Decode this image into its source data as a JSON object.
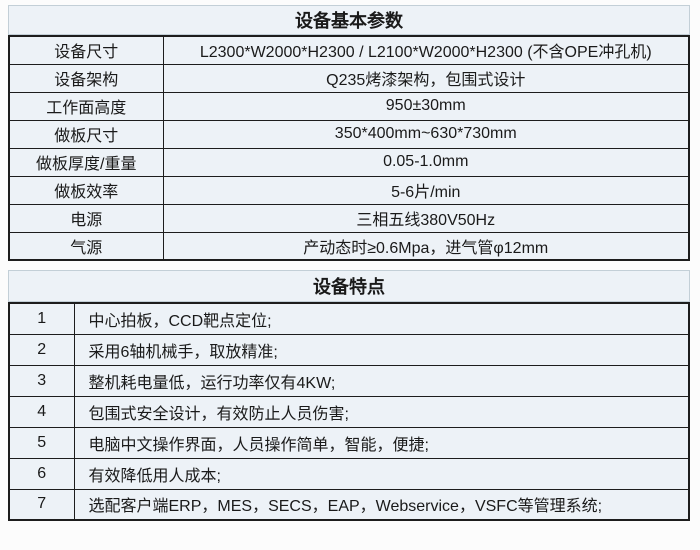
{
  "colors": {
    "cell_bg": "#edf2f7",
    "border_dark": "#1d1d1d",
    "title_band_border": "#c3cfd7",
    "text": "#1a1a1a"
  },
  "params_table": {
    "title": "设备基本参数",
    "rows": [
      {
        "label": "设备尺寸",
        "value": "L2300*W2000*H2300 / L2100*W2000*H2300 (不含OPE冲孔机)"
      },
      {
        "label": "设备架构",
        "value": "Q235烤漆架构，包围式设计"
      },
      {
        "label": "工作面高度",
        "value": "950±30mm"
      },
      {
        "label": "做板尺寸",
        "value": "350*400mm~630*730mm"
      },
      {
        "label": "做板厚度/重量",
        "value": "0.05-1.0mm"
      },
      {
        "label": "做板效率",
        "value": "5-6片/min"
      },
      {
        "label": "电源",
        "value": "三相五线380V50Hz"
      },
      {
        "label": "气源",
        "value": "产动态时≥0.6Mpa，进气管φ12mm"
      }
    ]
  },
  "features_table": {
    "title": "设备特点",
    "rows": [
      {
        "num": "1",
        "text": "中心拍板，CCD靶点定位;"
      },
      {
        "num": "2",
        "text": "采用6轴机械手，取放精准;"
      },
      {
        "num": "3",
        "text": "整机耗电量低，运行功率仅有4KW;"
      },
      {
        "num": "4",
        "text": "包围式安全设计，有效防止人员伤害;"
      },
      {
        "num": "5",
        "text": "电脑中文操作界面，人员操作简单，智能，便捷;"
      },
      {
        "num": "6",
        "text": "有效降低用人成本;"
      },
      {
        "num": "7",
        "text": "选配客户端ERP，MES，SECS，EAP，Webservice，VSFC等管理系统;"
      }
    ]
  }
}
